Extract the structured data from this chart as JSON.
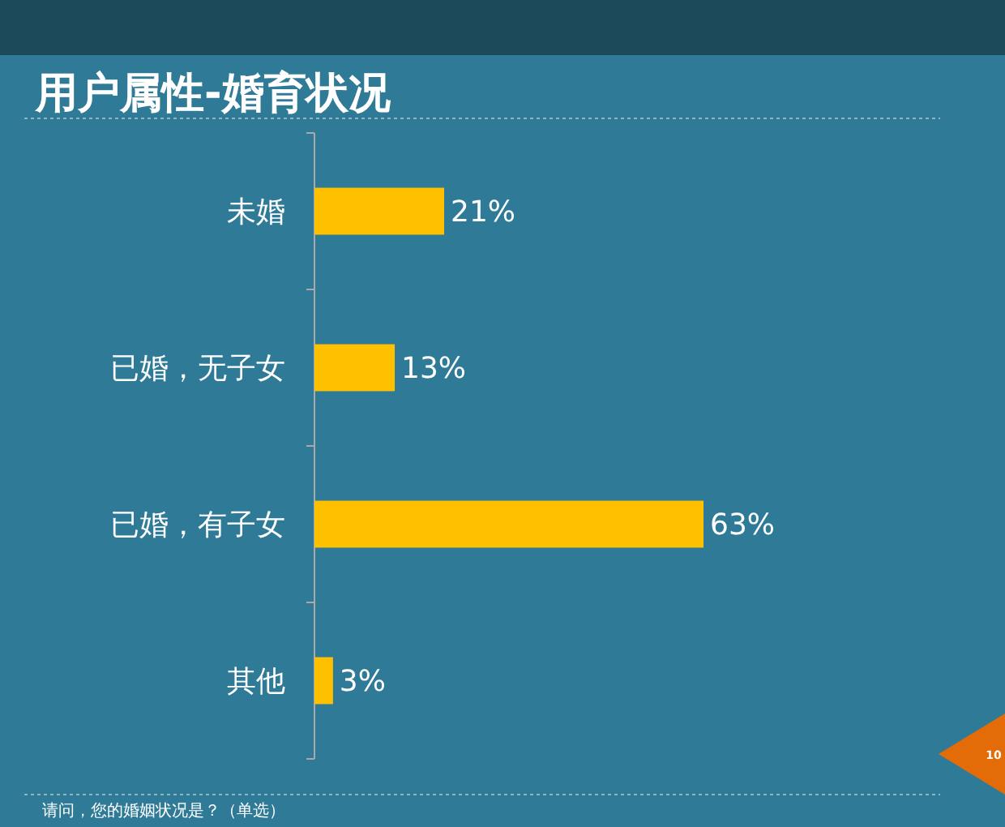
{
  "chart_data": {
    "type": "bar",
    "orientation": "horizontal",
    "title": "用户属性-婚育状况",
    "categories": [
      "未婚",
      "已婚，无子女",
      "已婚，有子女",
      "其他"
    ],
    "values": [
      21,
      13,
      63,
      3
    ],
    "value_labels": [
      "21%",
      "13%",
      "63%",
      "3%"
    ],
    "color": "#ffc000",
    "annotations": [
      "请问，您的婚姻状况是？（单选）",
      "10"
    ]
  }
}
